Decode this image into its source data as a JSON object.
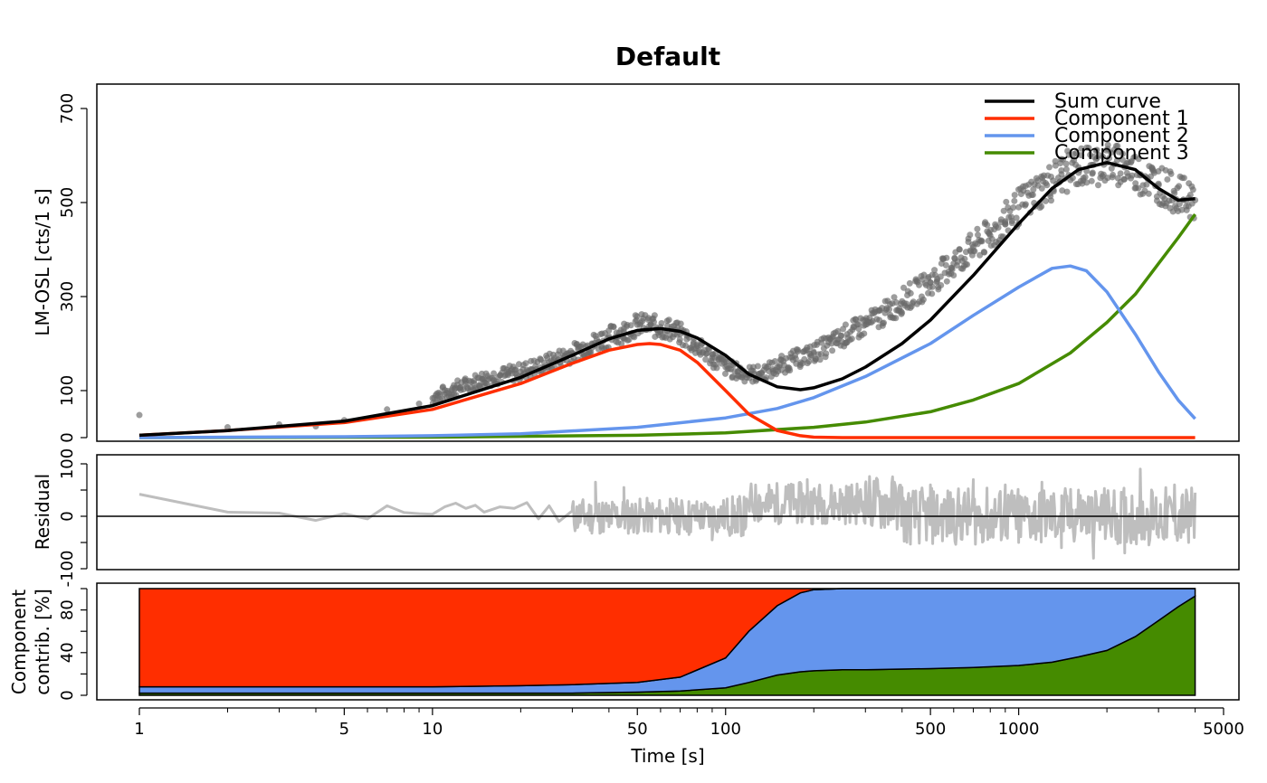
{
  "chart_data": [
    {
      "type": "scatter",
      "panel": "main",
      "title": "Default",
      "ylabel": "LM-OSL [cts/1 s]",
      "xscale": "log",
      "xlim": [
        1,
        4000
      ],
      "ylim": [
        0,
        700
      ],
      "yticks": [
        0,
        100,
        300,
        500,
        700
      ],
      "legend_position": "top-right",
      "legend": [
        {
          "label": "Sum curve",
          "color": "#000000"
        },
        {
          "label": "Component 1",
          "color": "#FF2E00"
        },
        {
          "label": "Component 2",
          "color": "#6495ED"
        },
        {
          "label": "Component 3",
          "color": "#458B00"
        }
      ],
      "observed_color": "#696969",
      "observed": {
        "x": [
          1,
          2,
          3,
          4,
          5,
          7,
          9,
          12,
          15,
          20,
          25,
          30,
          35,
          40,
          45,
          50,
          55,
          60,
          65,
          70,
          80,
          90,
          100,
          110,
          120,
          130,
          150,
          170,
          200,
          230,
          260,
          300,
          350,
          400,
          500,
          600,
          700,
          800,
          900,
          1000,
          1200,
          1400,
          1600,
          1800,
          2000,
          2300,
          2600,
          3000,
          3400,
          3800,
          4000
        ],
        "y": [
          48,
          22,
          28,
          24,
          37,
          60,
          72,
          105,
          125,
          140,
          160,
          180,
          200,
          215,
          225,
          240,
          238,
          235,
          230,
          220,
          195,
          170,
          150,
          140,
          135,
          135,
          150,
          165,
          180,
          200,
          220,
          240,
          265,
          290,
          330,
          370,
          405,
          430,
          460,
          490,
          530,
          560,
          575,
          580,
          585,
          575,
          560,
          540,
          520,
          510,
          505
        ]
      },
      "series": [
        {
          "name": "Sum curve",
          "color": "#000000",
          "x": [
            1,
            2,
            5,
            10,
            20,
            30,
            40,
            50,
            60,
            70,
            80,
            100,
            120,
            150,
            180,
            200,
            250,
            300,
            400,
            500,
            700,
            1000,
            1300,
            1600,
            2000,
            2500,
            3000,
            3500,
            4000
          ],
          "y": [
            5,
            15,
            35,
            68,
            128,
            175,
            210,
            228,
            232,
            226,
            212,
            175,
            135,
            108,
            102,
            106,
            125,
            150,
            200,
            250,
            345,
            455,
            530,
            570,
            585,
            570,
            530,
            505,
            508
          ]
        },
        {
          "name": "Component 1",
          "color": "#FF2E00",
          "x": [
            1,
            2,
            5,
            10,
            20,
            30,
            40,
            50,
            55,
            60,
            70,
            80,
            100,
            120,
            150,
            180,
            200,
            250,
            300,
            500,
            1000,
            2000,
            4000
          ],
          "y": [
            5,
            15,
            32,
            60,
            115,
            158,
            186,
            198,
            200,
            198,
            186,
            160,
            100,
            50,
            15,
            4,
            1,
            0,
            0,
            0,
            0,
            0,
            0
          ]
        },
        {
          "name": "Component 2",
          "color": "#6495ED",
          "x": [
            1,
            5,
            10,
            20,
            50,
            100,
            150,
            200,
            300,
            500,
            700,
            1000,
            1300,
            1500,
            1700,
            2000,
            2500,
            3000,
            3500,
            4000
          ],
          "y": [
            0,
            2,
            4,
            8,
            22,
            42,
            62,
            85,
            130,
            200,
            260,
            320,
            360,
            365,
            355,
            310,
            220,
            140,
            80,
            40
          ]
        },
        {
          "name": "Component 3",
          "color": "#458B00",
          "x": [
            1,
            10,
            50,
            100,
            200,
            300,
            500,
            700,
            1000,
            1500,
            2000,
            2500,
            3000,
            3500,
            4000
          ],
          "y": [
            0,
            1,
            5,
            10,
            22,
            33,
            55,
            80,
            115,
            180,
            245,
            305,
            370,
            425,
            475
          ]
        }
      ]
    },
    {
      "type": "line",
      "panel": "residual",
      "ylabel": "Residual",
      "xscale": "log",
      "xlim": [
        1,
        4000
      ],
      "ylim": [
        -100,
        100
      ],
      "yticks": [
        -100,
        0,
        100
      ],
      "color": "#BEBEBE",
      "x": [
        1,
        2,
        3,
        4,
        5,
        6,
        7,
        8,
        9,
        10,
        11,
        12,
        13,
        14,
        15,
        17,
        19,
        21,
        23,
        25,
        27,
        30,
        33,
        36,
        40,
        45,
        50,
        55,
        60,
        65,
        70,
        75,
        80,
        90,
        100,
        110,
        120,
        130,
        140,
        150,
        170,
        190,
        210,
        230,
        260,
        300,
        350,
        400,
        500,
        600,
        700,
        800,
        900,
        1000,
        1200,
        1400,
        1600,
        1800,
        2000,
        2300,
        2600,
        3000,
        3400,
        3800,
        4000
      ],
      "y": [
        42,
        8,
        6,
        -8,
        5,
        -5,
        20,
        7,
        5,
        4,
        18,
        25,
        15,
        21,
        8,
        18,
        15,
        26,
        -5,
        20,
        -10,
        18,
        5,
        65,
        -20,
        55,
        -15,
        20,
        -25,
        5,
        -20,
        -35,
        10,
        -45,
        15,
        -30,
        25,
        40,
        10,
        55,
        60,
        70,
        40,
        55,
        30,
        60,
        40,
        55,
        60,
        20,
        70,
        -40,
        60,
        -50,
        65,
        -60,
        50,
        -80,
        40,
        -70,
        90,
        -40,
        60,
        -50,
        45
      ]
    },
    {
      "type": "area",
      "panel": "contribution",
      "ylabel": "Component contrib. [%]",
      "xlabel": "Time [s]",
      "xscale": "log",
      "xlim": [
        1,
        4000
      ],
      "ylim": [
        0,
        100
      ],
      "yticks": [
        0,
        40,
        80
      ],
      "xticks": [
        1,
        5,
        10,
        50,
        100,
        500,
        1000,
        5000
      ],
      "stacked": true,
      "x": [
        1,
        5,
        10,
        20,
        30,
        50,
        70,
        100,
        120,
        150,
        180,
        200,
        250,
        300,
        500,
        700,
        1000,
        1300,
        1600,
        2000,
        2500,
        3000,
        3500,
        4000
      ],
      "series": [
        {
          "name": "Component 3",
          "color": "#458B00",
          "values": [
            2,
            2,
            2,
            2,
            2,
            3,
            4,
            7,
            12,
            19,
            22,
            23,
            24,
            24,
            25,
            26,
            28,
            31,
            36,
            42,
            55,
            70,
            83,
            93
          ]
        },
        {
          "name": "Component 2",
          "color": "#6495ED",
          "values": [
            6,
            6,
            6,
            7,
            8,
            9,
            13,
            28,
            48,
            65,
            74,
            76,
            76,
            76,
            75,
            74,
            72,
            69,
            64,
            58,
            45,
            30,
            17,
            7
          ]
        },
        {
          "name": "Component 1",
          "color": "#FF2E00",
          "values": [
            92,
            92,
            92,
            91,
            90,
            88,
            83,
            65,
            40,
            16,
            4,
            1,
            0,
            0,
            0,
            0,
            0,
            0,
            0,
            0,
            0,
            0,
            0,
            0
          ]
        }
      ]
    }
  ]
}
